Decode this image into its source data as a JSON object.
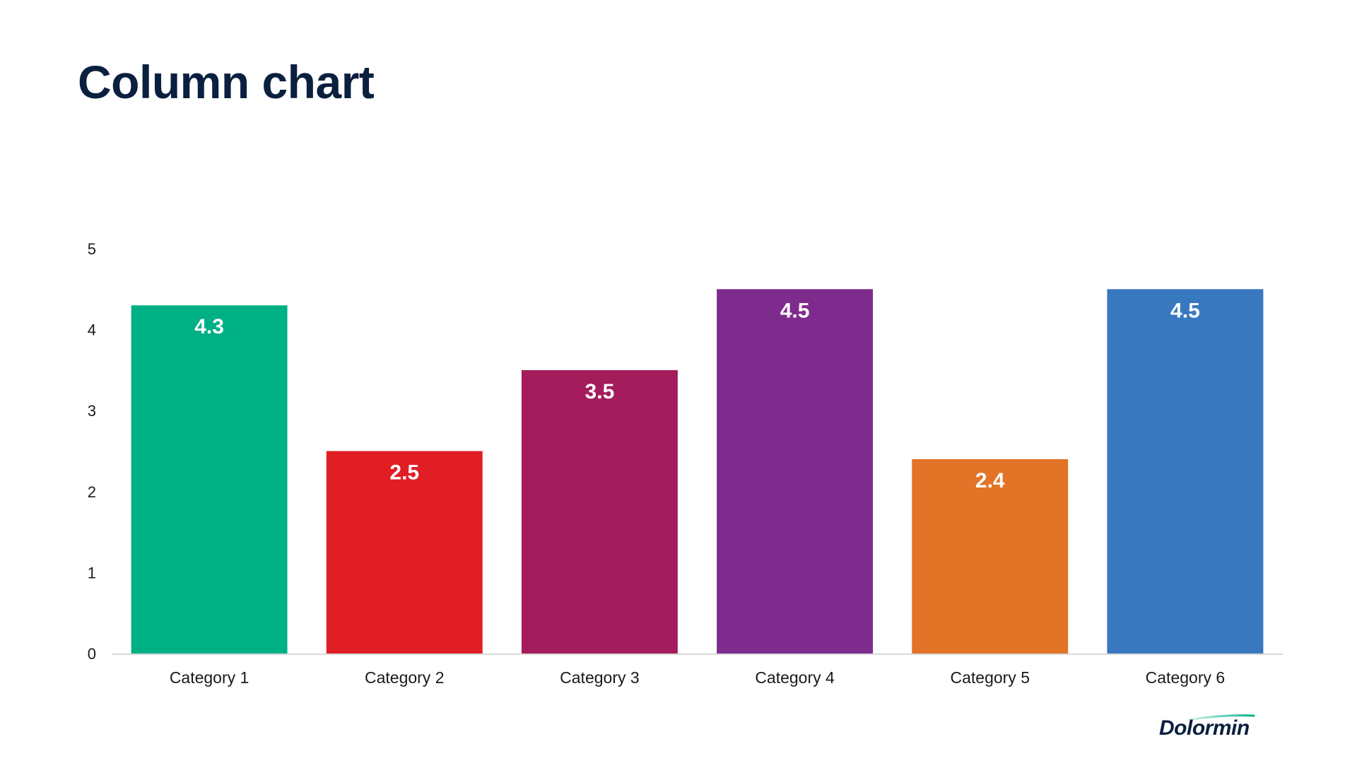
{
  "slide": {
    "title": "Column chart"
  },
  "logo": {
    "text": "Dolormin",
    "accent_color": "#00b085"
  },
  "chart_data": {
    "type": "bar",
    "categories": [
      "Category 1",
      "Category 2",
      "Category 3",
      "Category 4",
      "Category 5",
      "Category 6"
    ],
    "values": [
      4.3,
      2.5,
      3.5,
      4.5,
      2.4,
      4.5
    ],
    "data_labels": [
      "4.3",
      "2.5",
      "3.5",
      "4.5",
      "2.4",
      "4.5"
    ],
    "colors": [
      "#00b085",
      "#e01e24",
      "#a31c5c",
      "#7e2b8e",
      "#e37326",
      "#3878bf"
    ],
    "ylim": [
      0,
      5
    ],
    "yticks": [
      0,
      1,
      2,
      3,
      4,
      5
    ],
    "ytick_labels": [
      "0",
      "1",
      "2",
      "3",
      "4",
      "5"
    ],
    "grid": false,
    "legend": "none",
    "data_label_position": "inside-top",
    "title": "",
    "xlabel": "",
    "ylabel": ""
  }
}
